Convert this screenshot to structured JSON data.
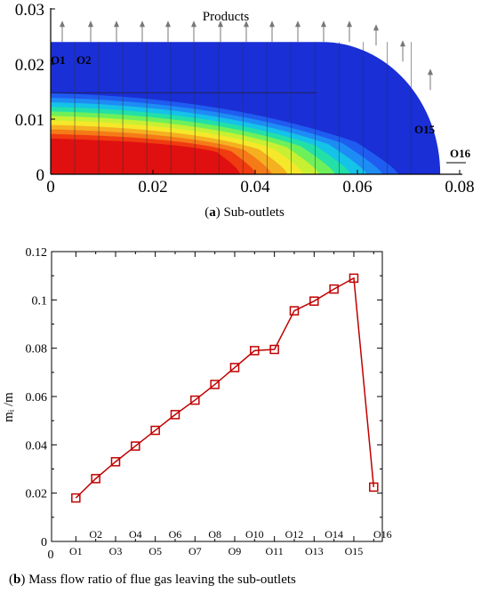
{
  "figure_a": {
    "caption_letter": "a",
    "caption_text": "Sub-outlets",
    "products_label": "Products",
    "outlet_labels": [
      "O1",
      "O2",
      "O15",
      "O16"
    ],
    "x_ticks": [
      "0",
      "0.02",
      "0.04",
      "0.06",
      "0.08"
    ],
    "y_ticks": [
      "0",
      "0.01",
      "0.02",
      "0.03"
    ],
    "contour_colors": [
      "#1a2fd6",
      "#1f5cf0",
      "#1e8cf5",
      "#15c2e8",
      "#22e0a8",
      "#6ef05a",
      "#c8f032",
      "#f5e82a",
      "#f5b020",
      "#f57a18",
      "#f03a10",
      "#e01010"
    ]
  },
  "chart_data": {
    "type": "line",
    "caption_letter": "b",
    "title": "Mass flow ratio of flue gas leaving the sub-outlets",
    "ylabel": "mᵢ /m",
    "xlabel": "",
    "ylim": [
      0,
      0.12
    ],
    "y_ticks": [
      "0",
      "0.02",
      "0.04",
      "0.06",
      "0.08",
      "0.1",
      "0.12"
    ],
    "x_tick_zero": "0",
    "x_labels_lower": [
      "O1",
      "O3",
      "O5",
      "O7",
      "O9",
      "O11",
      "O13",
      "O15"
    ],
    "x_labels_upper": [
      "O2",
      "O4",
      "O6",
      "O8",
      "O10",
      "O12",
      "O14",
      "O16"
    ],
    "series": [
      {
        "x": [
          1,
          2,
          3,
          4,
          5,
          6,
          7,
          8,
          9,
          10,
          11,
          12,
          13,
          14,
          15,
          16
        ],
        "values": [
          0.018,
          0.026,
          0.033,
          0.0395,
          0.046,
          0.0525,
          0.0585,
          0.065,
          0.072,
          0.079,
          0.0795,
          0.0955,
          0.0995,
          0.1045,
          0.109,
          0.0225
        ],
        "color": "#c00000"
      }
    ]
  }
}
